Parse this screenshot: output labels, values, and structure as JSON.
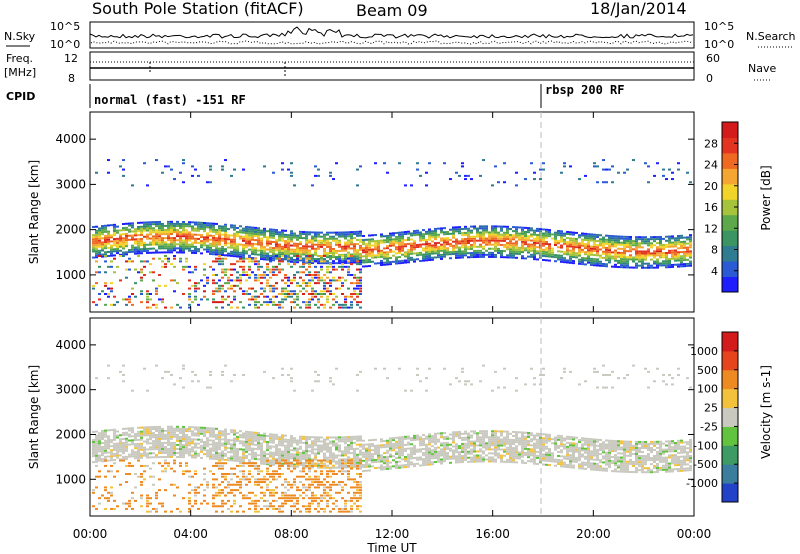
{
  "header": {
    "title": "South Pole Station (fitACF)",
    "beam": "Beam 09",
    "date": "18/Jan/2014"
  },
  "panels": {
    "nsky": {
      "label": "N.Sky",
      "tick_top": "10^5",
      "tick_bottom": "10^0"
    },
    "nsearch": {
      "label": "N.Search",
      "tick_top": "10^5",
      "tick_bottom": "10^0"
    },
    "freq": {
      "label_line1": "Freq.",
      "label_line2": "[MHz]",
      "tick_top": "12",
      "tick_bottom": "8"
    },
    "nave": {
      "label": "Nave",
      "tick_top": "60",
      "tick_bottom": "0"
    },
    "cpid": {
      "label": "CPID",
      "mode1": "normal (fast) -151 RF",
      "mode2": "rbsp 200 RF"
    }
  },
  "chart_data": [
    {
      "type": "heatmap",
      "ylabel": "Slant Range [km]",
      "yticks": [
        "1000",
        "2000",
        "3000",
        "4000"
      ],
      "ylim": [
        180,
        4600
      ],
      "colorbar": {
        "label": "Power [dB]",
        "ticks": [
          "4",
          "8",
          "12",
          "16",
          "20",
          "24",
          "28"
        ],
        "colors": [
          "#1e1eff",
          "#2a5bd4",
          "#2f7b91",
          "#3b9563",
          "#5ca84a",
          "#a5c43c",
          "#f2d32a",
          "#f5a531",
          "#ee6a23",
          "#e23421",
          "#d31b1b"
        ]
      }
    },
    {
      "type": "heatmap",
      "ylabel": "Slant Range [km]",
      "yticks": [
        "1000",
        "2000",
        "3000",
        "4000"
      ],
      "ylim": [
        180,
        4600
      ],
      "colorbar": {
        "label": "Velocity [m s-1]",
        "ticks": [
          "1000",
          "500",
          "100",
          "25",
          "-25",
          "-100",
          "-500",
          "-1000"
        ],
        "colors": [
          "#2242c8",
          "#3a7d9c",
          "#3f9b64",
          "#62c33f",
          "#c9c9c0",
          "#f2c23c",
          "#ee8a22",
          "#e5441d",
          "#d31b1b"
        ]
      }
    }
  ],
  "xaxis": {
    "label": "Time UT",
    "ticks": [
      "00:00",
      "04:00",
      "08:00",
      "12:00",
      "16:00",
      "20:00",
      "00:00"
    ]
  }
}
